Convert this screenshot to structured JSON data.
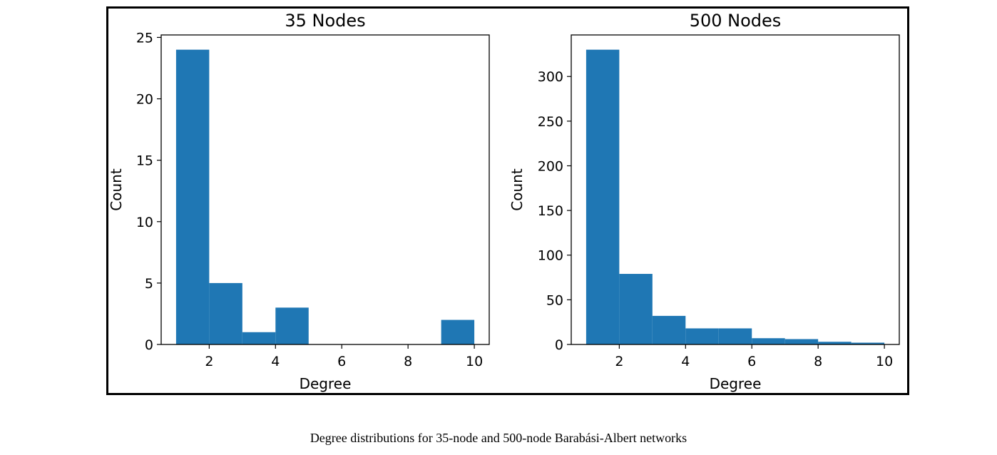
{
  "caption": "Degree distributions for 35-node and 500-node Barabási-Albert networks",
  "colors": {
    "bar": "#1f77b4",
    "frame": "#000000"
  },
  "chart_data": [
    {
      "type": "bar",
      "title": "35 Nodes",
      "xlabel": "Degree",
      "ylabel": "Count",
      "xlim": [
        0.55,
        10.45
      ],
      "ylim": [
        0,
        25.2
      ],
      "xticks": [
        2,
        4,
        6,
        8,
        10
      ],
      "yticks": [
        0,
        5,
        10,
        15,
        20,
        25
      ],
      "bins": [
        {
          "x0": 1,
          "x1": 2,
          "value": 24
        },
        {
          "x0": 2,
          "x1": 3,
          "value": 5
        },
        {
          "x0": 3,
          "x1": 4,
          "value": 1
        },
        {
          "x0": 4,
          "x1": 5,
          "value": 3
        },
        {
          "x0": 5,
          "x1": 6,
          "value": 0
        },
        {
          "x0": 6,
          "x1": 7,
          "value": 0
        },
        {
          "x0": 7,
          "x1": 8,
          "value": 0
        },
        {
          "x0": 8,
          "x1": 9,
          "value": 0
        },
        {
          "x0": 9,
          "x1": 10,
          "value": 2
        }
      ]
    },
    {
      "type": "bar",
      "title": "500 Nodes",
      "xlabel": "Degree",
      "ylabel": "Count",
      "xlim": [
        0.55,
        10.45
      ],
      "ylim": [
        0,
        346.5
      ],
      "xticks": [
        2,
        4,
        6,
        8,
        10
      ],
      "yticks": [
        0,
        50,
        100,
        150,
        200,
        250,
        300
      ],
      "bins": [
        {
          "x0": 1,
          "x1": 2,
          "value": 330
        },
        {
          "x0": 2,
          "x1": 3,
          "value": 79
        },
        {
          "x0": 3,
          "x1": 4,
          "value": 32
        },
        {
          "x0": 4,
          "x1": 5,
          "value": 18
        },
        {
          "x0": 5,
          "x1": 6,
          "value": 18
        },
        {
          "x0": 6,
          "x1": 7,
          "value": 7
        },
        {
          "x0": 7,
          "x1": 8,
          "value": 6
        },
        {
          "x0": 8,
          "x1": 9,
          "value": 3
        },
        {
          "x0": 9,
          "x1": 10,
          "value": 2
        }
      ]
    }
  ]
}
